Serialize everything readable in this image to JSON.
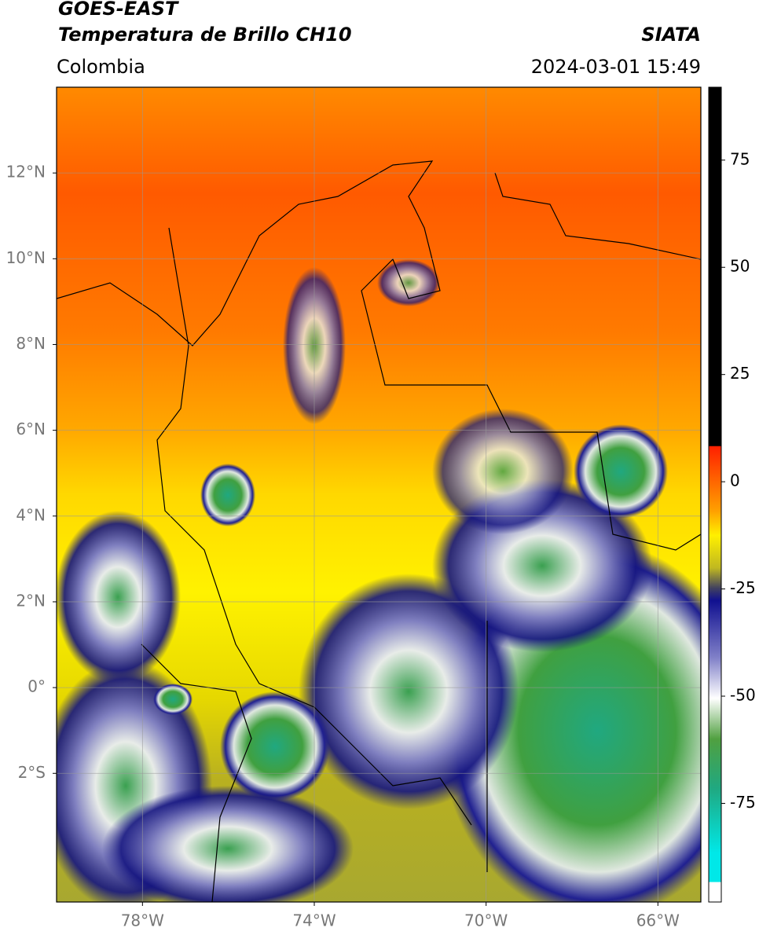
{
  "header": {
    "title_line1": "GOES-EAST",
    "title_line2": "Temperatura de Brillo CH10",
    "agency": "SIATA",
    "region": "Colombia",
    "timestamp": "2024-03-01 15:49"
  },
  "map": {
    "lon_range": [
      -80,
      -65
    ],
    "lat_range": [
      -5,
      14
    ],
    "lon_ticks": [
      {
        "value": -78,
        "label": "78°W"
      },
      {
        "value": -74,
        "label": "74°W"
      },
      {
        "value": -70,
        "label": "70°W"
      },
      {
        "value": -66,
        "label": "66°W"
      }
    ],
    "lat_ticks": [
      {
        "value": 12,
        "label": "12°N"
      },
      {
        "value": 10,
        "label": "10°N"
      },
      {
        "value": 8,
        "label": "8°N"
      },
      {
        "value": 6,
        "label": "6°N"
      },
      {
        "value": 4,
        "label": "4°N"
      },
      {
        "value": 2,
        "label": "2°N"
      },
      {
        "value": 0,
        "label": "0°"
      },
      {
        "value": -2,
        "label": "2°S"
      }
    ]
  },
  "colorbar": {
    "range": [
      -98,
      92
    ],
    "ticks": [
      75,
      50,
      25,
      0,
      -25,
      -50,
      -75
    ]
  }
}
